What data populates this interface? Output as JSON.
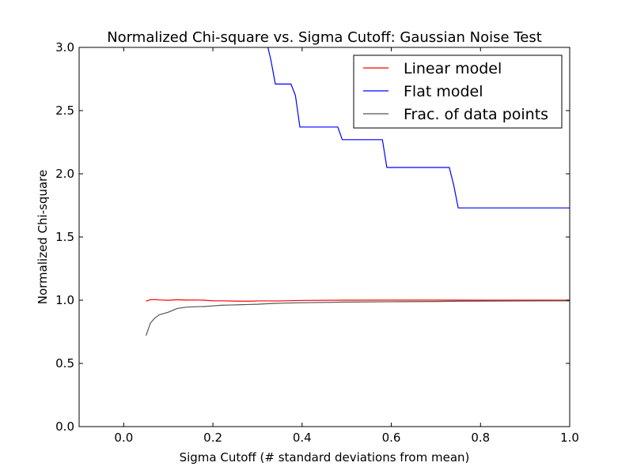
{
  "chart_data": {
    "type": "line",
    "title": "Normalized Chi-square vs. Sigma Cutoff: Gaussian Noise Test",
    "xlabel": "Sigma Cutoff  (# standard deviations from mean)",
    "ylabel": "Normalized Chi-square",
    "xlim": [
      -0.1,
      1.0
    ],
    "ylim": [
      0.0,
      3.0
    ],
    "x_ticks": [
      0.0,
      0.2,
      0.4,
      0.6,
      0.8,
      1.0
    ],
    "x_tick_labels": [
      "0.0",
      "0.2",
      "0.4",
      "0.6",
      "0.8",
      "1.0"
    ],
    "y_ticks": [
      0.0,
      0.5,
      1.0,
      1.5,
      2.0,
      2.5,
      3.0
    ],
    "y_tick_labels": [
      "0.0",
      "0.5",
      "1.0",
      "1.5",
      "2.0",
      "2.5",
      "3.0"
    ],
    "grid": false,
    "legend_position": "top-right",
    "series": [
      {
        "name": "Linear model",
        "color": "#ff0000",
        "x": [
          0.05,
          0.06,
          0.07,
          0.08,
          0.1,
          0.12,
          0.14,
          0.16,
          0.18,
          0.2,
          0.22,
          0.25,
          0.28,
          0.3,
          0.35,
          0.4,
          0.5,
          0.6,
          0.7,
          0.8,
          0.9,
          1.0
        ],
        "y": [
          0.993,
          1.004,
          1.005,
          1.002,
          0.999,
          1.004,
          1.001,
          1.002,
          1.0,
          0.995,
          0.995,
          0.993,
          0.992,
          0.994,
          0.994,
          0.998,
          1.0,
          1.001,
          1.001,
          1.0,
          1.0,
          1.0
        ]
      },
      {
        "name": "Flat model",
        "color": "#0000ff",
        "x": [
          0.32,
          0.33,
          0.34,
          0.375,
          0.385,
          0.395,
          0.48,
          0.49,
          0.58,
          0.59,
          0.73,
          0.74,
          0.75,
          1.0
        ],
        "y": [
          3.05,
          2.9,
          2.71,
          2.71,
          2.62,
          2.37,
          2.37,
          2.27,
          2.27,
          2.05,
          2.05,
          1.91,
          1.73,
          1.73
        ]
      },
      {
        "name": "Frac. of data points",
        "color": "#555555",
        "x": [
          0.05,
          0.055,
          0.06,
          0.07,
          0.08,
          0.09,
          0.1,
          0.11,
          0.12,
          0.14,
          0.16,
          0.18,
          0.2,
          0.22,
          0.24,
          0.26,
          0.28,
          0.3,
          0.32,
          0.34,
          0.36,
          0.4,
          0.5,
          0.6,
          0.7,
          0.75,
          0.8,
          0.9,
          1.0
        ],
        "y": [
          0.72,
          0.77,
          0.82,
          0.86,
          0.885,
          0.895,
          0.905,
          0.92,
          0.935,
          0.945,
          0.948,
          0.95,
          0.955,
          0.96,
          0.962,
          0.964,
          0.966,
          0.968,
          0.972,
          0.975,
          0.977,
          0.98,
          0.985,
          0.988,
          0.99,
          0.992,
          0.993,
          0.994,
          0.995
        ]
      }
    ]
  }
}
